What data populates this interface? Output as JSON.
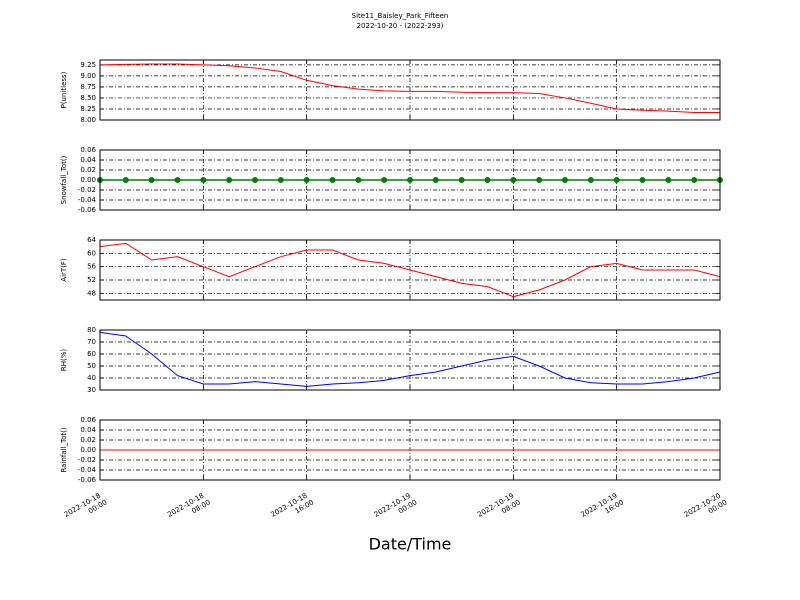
{
  "chart_data": [
    {
      "type": "line",
      "title": "Site11_Baisley_Park_Fifteen",
      "subtitle": "2022-10-20 - (2022-293)",
      "ylabel": "P(unitless)",
      "color": "#ff0000",
      "x": [
        "2022-10-18 00:00",
        "2022-10-18 02:00",
        "2022-10-18 04:00",
        "2022-10-18 06:00",
        "2022-10-18 08:00",
        "2022-10-18 10:00",
        "2022-10-18 12:00",
        "2022-10-18 14:00",
        "2022-10-18 16:00",
        "2022-10-18 18:00",
        "2022-10-18 20:00",
        "2022-10-18 22:00",
        "2022-10-19 00:00",
        "2022-10-19 02:00",
        "2022-10-19 04:00",
        "2022-10-19 06:00",
        "2022-10-19 08:00",
        "2022-10-19 10:00",
        "2022-10-19 12:00",
        "2022-10-19 14:00",
        "2022-10-19 16:00",
        "2022-10-19 18:00",
        "2022-10-19 20:00",
        "2022-10-19 22:00",
        "2022-10-20 00:00"
      ],
      "values": [
        9.25,
        9.26,
        9.27,
        9.27,
        9.25,
        9.23,
        9.18,
        9.1,
        8.9,
        8.78,
        8.7,
        8.66,
        8.65,
        8.65,
        8.63,
        8.62,
        8.62,
        8.6,
        8.5,
        8.38,
        8.25,
        8.22,
        8.2,
        8.17,
        8.17
      ],
      "xlim": [
        "2022-10-18 00:00",
        "2022-10-20 00:00"
      ],
      "xticks": [
        "2022-10-18 00:00",
        "2022-10-18 08:00",
        "2022-10-18 16:00",
        "2022-10-19 00:00",
        "2022-10-19 08:00",
        "2022-10-19 16:00",
        "2022-10-20 00:00"
      ],
      "ylim": [
        8.0,
        9.36
      ],
      "yticks": [
        {
          "value": 8,
          "label": "8.00"
        },
        8.25,
        {
          "value": 8.5,
          "label": "8.50"
        },
        8.75,
        {
          "value": 9,
          "label": "9.00"
        },
        9.25
      ],
      "grid": true
    },
    {
      "type": "line",
      "ylabel": "Snowfall_Tot()",
      "color": "#008000",
      "marker": true,
      "x": [
        "2022-10-18 00:00",
        "2022-10-18 02:00",
        "2022-10-18 04:00",
        "2022-10-18 06:00",
        "2022-10-18 08:00",
        "2022-10-18 10:00",
        "2022-10-18 12:00",
        "2022-10-18 14:00",
        "2022-10-18 16:00",
        "2022-10-18 18:00",
        "2022-10-18 20:00",
        "2022-10-18 22:00",
        "2022-10-19 00:00",
        "2022-10-19 02:00",
        "2022-10-19 04:00",
        "2022-10-19 06:00",
        "2022-10-19 08:00",
        "2022-10-19 10:00",
        "2022-10-19 12:00",
        "2022-10-19 14:00",
        "2022-10-19 16:00",
        "2022-10-19 18:00",
        "2022-10-19 20:00",
        "2022-10-19 22:00",
        "2022-10-20 00:00"
      ],
      "values": [
        0,
        0,
        0,
        0,
        0,
        0,
        0,
        0,
        0,
        0,
        0,
        0,
        0,
        0,
        0,
        0,
        0,
        0,
        0,
        0,
        0,
        0,
        0,
        0,
        0
      ],
      "xlim": [
        "2022-10-18 00:00",
        "2022-10-20 00:00"
      ],
      "xticks": [
        "2022-10-18 00:00",
        "2022-10-18 08:00",
        "2022-10-18 16:00",
        "2022-10-19 00:00",
        "2022-10-19 08:00",
        "2022-10-19 16:00",
        "2022-10-20 00:00"
      ],
      "ylim": [
        -0.06,
        0.06
      ],
      "yticks": [
        -0.06,
        -0.04,
        -0.02,
        {
          "value": 0,
          "label": "0.00"
        },
        0.02,
        0.04,
        0.06
      ],
      "grid": true
    },
    {
      "type": "line",
      "ylabel": "AirT(F)",
      "color": "#ff0000",
      "x": [
        "2022-10-18 00:00",
        "2022-10-18 02:00",
        "2022-10-18 04:00",
        "2022-10-18 06:00",
        "2022-10-18 08:00",
        "2022-10-18 10:00",
        "2022-10-18 12:00",
        "2022-10-18 14:00",
        "2022-10-18 16:00",
        "2022-10-18 18:00",
        "2022-10-18 20:00",
        "2022-10-18 22:00",
        "2022-10-19 00:00",
        "2022-10-19 02:00",
        "2022-10-19 04:00",
        "2022-10-19 06:00",
        "2022-10-19 08:00",
        "2022-10-19 10:00",
        "2022-10-19 12:00",
        "2022-10-19 14:00",
        "2022-10-19 16:00",
        "2022-10-19 18:00",
        "2022-10-19 20:00",
        "2022-10-19 22:00",
        "2022-10-20 00:00"
      ],
      "values": [
        62,
        63,
        58,
        59,
        56,
        53,
        56,
        59,
        61,
        61,
        58,
        57,
        55,
        53,
        51,
        50,
        47,
        49,
        52,
        56,
        57,
        55,
        55,
        55,
        53
      ],
      "xlim": [
        "2022-10-18 00:00",
        "2022-10-20 00:00"
      ],
      "xticks": [
        "2022-10-18 00:00",
        "2022-10-18 08:00",
        "2022-10-18 16:00",
        "2022-10-19 00:00",
        "2022-10-19 08:00",
        "2022-10-19 16:00",
        "2022-10-20 00:00"
      ],
      "ylim": [
        46,
        64
      ],
      "yticks": [
        48,
        52,
        56,
        60,
        64
      ],
      "grid": true
    },
    {
      "type": "line",
      "ylabel": "RH(%)",
      "color": "#0000ff",
      "x": [
        "2022-10-18 00:00",
        "2022-10-18 02:00",
        "2022-10-18 04:00",
        "2022-10-18 06:00",
        "2022-10-18 08:00",
        "2022-10-18 10:00",
        "2022-10-18 12:00",
        "2022-10-18 14:00",
        "2022-10-18 16:00",
        "2022-10-18 18:00",
        "2022-10-18 20:00",
        "2022-10-18 22:00",
        "2022-10-19 00:00",
        "2022-10-19 02:00",
        "2022-10-19 04:00",
        "2022-10-19 06:00",
        "2022-10-19 08:00",
        "2022-10-19 10:00",
        "2022-10-19 12:00",
        "2022-10-19 14:00",
        "2022-10-19 16:00",
        "2022-10-19 18:00",
        "2022-10-19 20:00",
        "2022-10-19 22:00",
        "2022-10-20 00:00"
      ],
      "values": [
        78,
        75,
        60,
        42,
        35,
        35,
        37,
        35,
        33,
        35,
        36,
        38,
        42,
        45,
        50,
        55,
        58,
        50,
        40,
        36,
        35,
        35,
        37,
        40,
        45
      ],
      "xlim": [
        "2022-10-18 00:00",
        "2022-10-20 00:00"
      ],
      "xticks": [
        "2022-10-18 00:00",
        "2022-10-18 08:00",
        "2022-10-18 16:00",
        "2022-10-19 00:00",
        "2022-10-19 08:00",
        "2022-10-19 16:00",
        "2022-10-20 00:00"
      ],
      "ylim": [
        30,
        80
      ],
      "yticks": [
        30,
        40,
        50,
        60,
        70,
        80
      ],
      "grid": true
    },
    {
      "type": "line",
      "ylabel": "Rainfall_Tot()",
      "xlabel": "Date/Time",
      "color": "#ff0000",
      "x": [
        "2022-10-18 00:00",
        "2022-10-18 02:00",
        "2022-10-18 04:00",
        "2022-10-18 06:00",
        "2022-10-18 08:00",
        "2022-10-18 10:00",
        "2022-10-18 12:00",
        "2022-10-18 14:00",
        "2022-10-18 16:00",
        "2022-10-18 18:00",
        "2022-10-18 20:00",
        "2022-10-18 22:00",
        "2022-10-19 00:00",
        "2022-10-19 02:00",
        "2022-10-19 04:00",
        "2022-10-19 06:00",
        "2022-10-19 08:00",
        "2022-10-19 10:00",
        "2022-10-19 12:00",
        "2022-10-19 14:00",
        "2022-10-19 16:00",
        "2022-10-19 18:00",
        "2022-10-19 20:00",
        "2022-10-19 22:00",
        "2022-10-20 00:00"
      ],
      "values": [
        0,
        0,
        0,
        0,
        0,
        0,
        0,
        0,
        0,
        0,
        0,
        0,
        0,
        0,
        0,
        0,
        0,
        0,
        0,
        0,
        0,
        0,
        0,
        0,
        0
      ],
      "xlim": [
        "2022-10-18 00:00",
        "2022-10-20 00:00"
      ],
      "xticks": [
        "2022-10-18 00:00",
        "2022-10-18 08:00",
        "2022-10-18 16:00",
        "2022-10-19 00:00",
        "2022-10-19 08:00",
        "2022-10-19 16:00",
        "2022-10-20 00:00"
      ],
      "tick_labels": true,
      "ylim": [
        -0.06,
        0.06
      ],
      "yticks": [
        -0.06,
        -0.04,
        -0.02,
        {
          "value": 0,
          "label": "0.00"
        },
        0.02,
        0.04,
        0.06
      ],
      "grid": true
    }
  ]
}
